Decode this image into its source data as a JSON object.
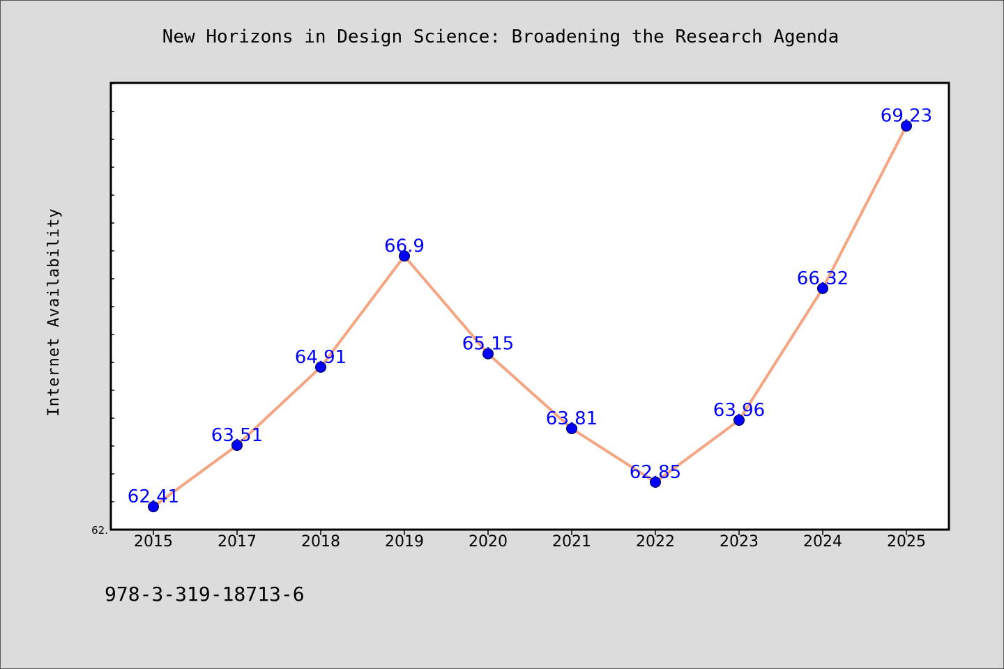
{
  "chart_data": {
    "type": "line",
    "title": "New Horizons in Design Science: Broadening the Research Agenda",
    "xlabel": "",
    "ylabel": "Internet Availability",
    "categories": [
      "2015",
      "2017",
      "2018",
      "2019",
      "2020",
      "2021",
      "2022",
      "2023",
      "2024",
      "2025"
    ],
    "series": [
      {
        "values": [
          62.41,
          63.51,
          64.91,
          66.9,
          65.15,
          63.81,
          62.85,
          63.96,
          66.32,
          69.23
        ],
        "data_labels": [
          "62.41",
          "63.51",
          "64.91",
          "66.9",
          "65.15",
          "63.81",
          "62.85",
          "63.96",
          "66.32",
          "69.23"
        ]
      }
    ],
    "ylim": [
      62.0,
      70.0
    ],
    "y_tick_labels": [
      "62."
    ],
    "grid": false,
    "line_color": "#f4a582",
    "marker_color": "#0000ff",
    "label_color": "#0000ff"
  },
  "caption": "978-3-319-18713-6"
}
